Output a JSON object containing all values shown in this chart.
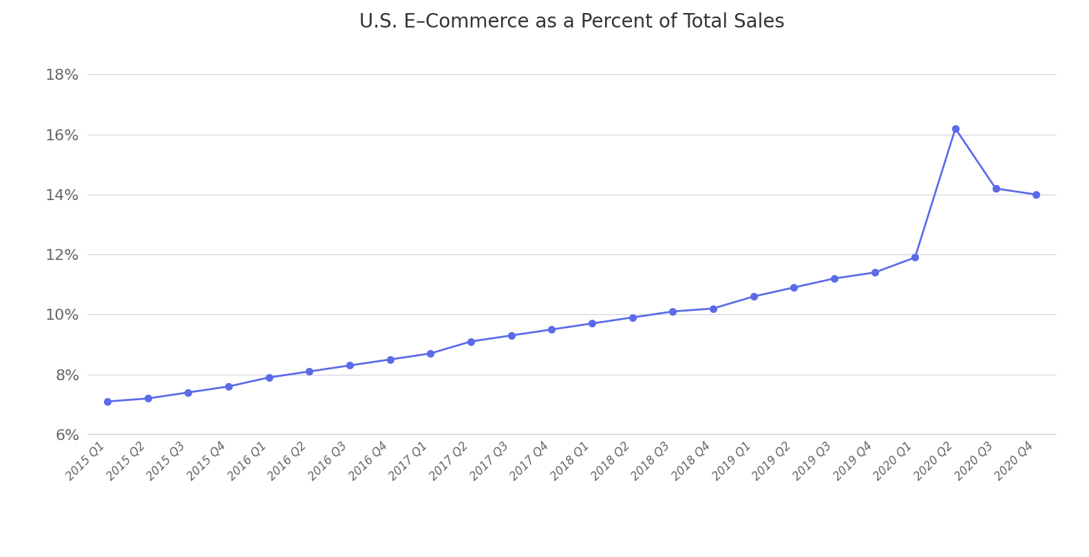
{
  "title": "U.S. E–Commerce as a Percent of Total Sales",
  "labels": [
    "2015 Q1",
    "2015 Q2",
    "2015 Q3",
    "2015 Q4",
    "2016 Q1",
    "2016 Q2",
    "2016 Q3",
    "2016 Q4",
    "2017 Q1",
    "2017 Q2",
    "2017 Q3",
    "2017 Q4",
    "2018 Q1",
    "2018 Q2",
    "2018 Q3",
    "2018 Q4",
    "2019 Q1",
    "2019 Q2",
    "2019 Q3",
    "2019 Q4",
    "2020 Q1",
    "2020 Q2",
    "2020 Q3",
    "2020 Q4"
  ],
  "values": [
    7.1,
    7.2,
    7.4,
    7.6,
    7.9,
    8.1,
    8.3,
    8.5,
    8.7,
    9.1,
    9.3,
    9.5,
    9.7,
    9.9,
    10.1,
    10.2,
    10.6,
    10.9,
    11.2,
    11.4,
    11.9,
    16.2,
    14.2,
    14.0
  ],
  "line_color": "#5b6be8",
  "marker_color": "#5b6be8",
  "background_color": "#ffffff",
  "grid_color": "#d0d0e0",
  "bottom_line_color": "#b0b8d0",
  "title_fontsize": 20,
  "ytick_fontsize": 16,
  "xtick_fontsize": 12,
  "title_color": "#333333",
  "tick_color": "#666666",
  "ylim": [
    6,
    19
  ],
  "yticks": [
    6,
    8,
    10,
    12,
    14,
    16,
    18
  ],
  "ytick_labels": [
    "6%",
    "8%",
    "10%",
    "12%",
    "14%",
    "16%",
    "18%"
  ]
}
